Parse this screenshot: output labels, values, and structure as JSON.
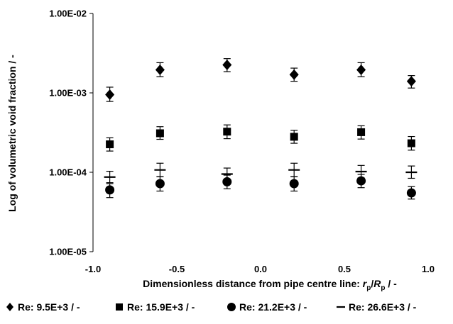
{
  "chart_data": {
    "type": "scatter",
    "title": "",
    "xlabel_main": "Dimensionless distance from pipe centre line: ",
    "xlabel_var1": "r",
    "xlabel_sub1": "p",
    "xlabel_sep": "/",
    "xlabel_var2": "R",
    "xlabel_sub2": "p",
    "xlabel_unit": " / -",
    "ylabel": "Log of volumetric void fraction / -",
    "y_scale": "log",
    "xlim": [
      -1.0,
      1.0
    ],
    "ylim": [
      1e-05,
      0.01
    ],
    "x_ticks": [
      -1.0,
      -0.5,
      0.0,
      0.5,
      1.0
    ],
    "x_tick_labels": [
      "-1.0",
      "-0.5",
      "0.0",
      "0.5",
      "1.0"
    ],
    "y_ticks": [
      1e-05,
      0.0001,
      0.001,
      0.01
    ],
    "y_tick_labels": [
      "1.00E-05",
      "1.00E-04",
      "1.00E-03",
      "1.00E-02"
    ],
    "grid": false,
    "legend_position": "bottom",
    "x": [
      -0.9,
      -0.6,
      -0.2,
      0.2,
      0.6,
      0.9
    ],
    "series": [
      {
        "name": "Re: 9.5E+3 / -",
        "marker": "diamond",
        "color": "#000000",
        "values": [
          0.00095,
          0.00195,
          0.00225,
          0.0017,
          0.00195,
          0.0014
        ],
        "err_low": [
          0.00078,
          0.0016,
          0.00185,
          0.0014,
          0.0016,
          0.00115
        ],
        "err_high": [
          0.00118,
          0.0024,
          0.0027,
          0.00205,
          0.0024,
          0.00165
        ]
      },
      {
        "name": "Re: 15.9E+3 / -",
        "marker": "square",
        "color": "#000000",
        "values": [
          0.000225,
          0.00031,
          0.000325,
          0.00028,
          0.00032,
          0.000232
        ],
        "err_low": [
          0.000185,
          0.00026,
          0.000265,
          0.000232,
          0.000262,
          0.00019
        ],
        "err_high": [
          0.000272,
          0.000375,
          0.000395,
          0.000338,
          0.000385,
          0.000282
        ]
      },
      {
        "name": "Re: 21.2E+3 / -",
        "marker": "circle",
        "color": "#000000",
        "values": [
          6e-05,
          7.2e-05,
          7.6e-05,
          7.2e-05,
          7.8e-05,
          5.5e-05
        ],
        "err_low": [
          4.8e-05,
          5.8e-05,
          6.2e-05,
          5.8e-05,
          6.4e-05,
          4.6e-05
        ],
        "err_high": [
          7.2e-05,
          8.8e-05,
          9.2e-05,
          8.8e-05,
          9.4e-05,
          6.6e-05
        ]
      },
      {
        "name": "Re: 26.6E+3 / -",
        "marker": "dash",
        "color": "#000000",
        "values": [
          8.7e-05,
          0.000107,
          9.5e-05,
          0.000107,
          0.000102,
          0.0001
        ],
        "err_low": [
          7.4e-05,
          8.8e-05,
          8e-05,
          8.8e-05,
          8.5e-05,
          8.4e-05
        ],
        "err_high": [
          0.000103,
          0.00013,
          0.000113,
          0.00013,
          0.000122,
          0.00012
        ]
      }
    ]
  }
}
